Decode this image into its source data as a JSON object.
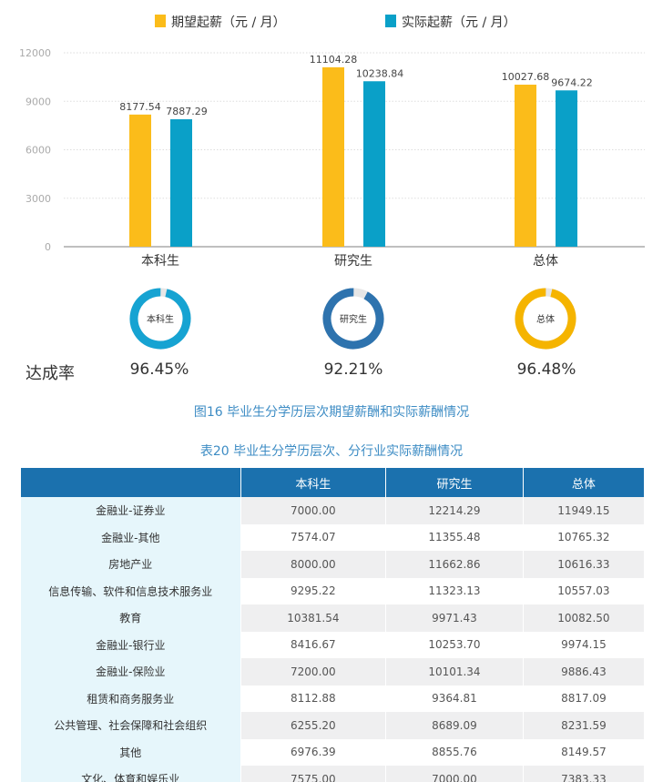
{
  "chart_data": {
    "type": "bar",
    "categories": [
      "本科生",
      "研究生",
      "总体"
    ],
    "series": [
      {
        "name": "期望起薪（元 / 月）",
        "values": [
          8177.54,
          11104.28,
          10027.68
        ],
        "color": "#fbbc1a"
      },
      {
        "name": "实际起薪（元 / 月）",
        "values": [
          7887.29,
          10238.84,
          9674.22
        ],
        "color": "#0aa0c8"
      }
    ],
    "data_labels": [
      [
        "8177.54",
        "11104.28",
        "10027.68"
      ],
      [
        "7887.29",
        "10238.84",
        "9674.22"
      ]
    ],
    "yticks": [
      "0",
      "3000",
      "6000",
      "9000",
      "12000"
    ],
    "ylim": [
      0,
      12000
    ],
    "grid": true,
    "legend": "top"
  },
  "achievement": {
    "label": "达成率",
    "items": [
      {
        "name": "本科生",
        "value": "96.45%",
        "fraction": 0.9645,
        "color": "#16a3d2"
      },
      {
        "name": "研究生",
        "value": "92.21%",
        "fraction": 0.9221,
        "color": "#2e73ae"
      },
      {
        "name": "总体",
        "value": "96.48%",
        "fraction": 0.9648,
        "color": "#f5b400"
      }
    ]
  },
  "figure_caption": "图16  毕业生分学历层次期望薪酬和实际薪酬情况",
  "table": {
    "caption": "表20  毕业生分学历层次、分行业实际薪酬情况",
    "headers": [
      "",
      "本科生",
      "研究生",
      "总体"
    ],
    "rows": [
      [
        "金融业-证券业",
        "7000.00",
        "12214.29",
        "11949.15"
      ],
      [
        "金融业-其他",
        "7574.07",
        "11355.48",
        "10765.32"
      ],
      [
        "房地产业",
        "8000.00",
        "11662.86",
        "10616.33"
      ],
      [
        "信息传输、软件和信息技术服务业",
        "9295.22",
        "11323.13",
        "10557.03"
      ],
      [
        "教育",
        "10381.54",
        "9971.43",
        "10082.50"
      ],
      [
        "金融业-银行业",
        "8416.67",
        "10253.70",
        "9974.15"
      ],
      [
        "金融业-保险业",
        "7200.00",
        "10101.34",
        "9886.43"
      ],
      [
        "租赁和商务服务业",
        "8112.88",
        "9364.81",
        "8817.09"
      ],
      [
        "公共管理、社会保障和社会组织",
        "6255.20",
        "8689.09",
        "8231.59"
      ],
      [
        "其他",
        "6976.39",
        "8855.76",
        "8149.57"
      ],
      [
        "文化、体育和娱乐业",
        "7575.00",
        "7000.00",
        "7383.33"
      ]
    ]
  }
}
